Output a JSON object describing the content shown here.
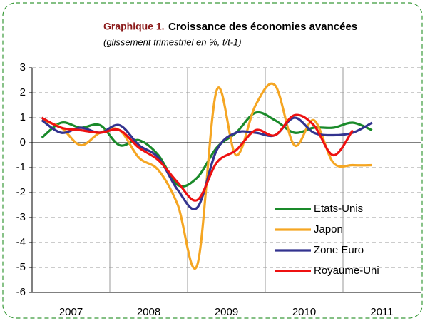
{
  "chart_data": {
    "type": "line",
    "title_prefix": "Graphique 1.",
    "title": "Croissance des économies avancées",
    "subtitle": "(glissement trimestriel en %, t/t-1)",
    "x": [
      2007.125,
      2007.375,
      2007.625,
      2007.875,
      2008.125,
      2008.375,
      2008.625,
      2008.875,
      2009.125,
      2009.375,
      2009.625,
      2009.875,
      2010.125,
      2010.375,
      2010.625,
      2010.875,
      2011.125,
      2011.375
    ],
    "series": [
      {
        "name": "Etats-Unis",
        "color": "#1a8a2a",
        "values": [
          0.2,
          0.8,
          0.6,
          0.7,
          -0.1,
          0.1,
          -0.5,
          -1.7,
          -1.4,
          -0.2,
          0.4,
          1.2,
          0.9,
          0.4,
          0.6,
          0.6,
          0.8,
          0.5
        ]
      },
      {
        "name": "Japon",
        "color": "#f5a623",
        "values": [
          0.9,
          0.6,
          -0.1,
          0.4,
          0.5,
          -0.6,
          -1.1,
          -2.5,
          -4.9,
          2.1,
          -0.5,
          1.5,
          2.3,
          -0.1,
          0.9,
          -0.8,
          -0.9,
          -0.9
        ]
      },
      {
        "name": "Zone Euro",
        "color": "#33338f",
        "values": [
          0.9,
          0.4,
          0.6,
          0.4,
          0.7,
          -0.1,
          -0.6,
          -1.9,
          -2.6,
          -0.3,
          0.4,
          0.4,
          0.3,
          1.0,
          0.4,
          0.3,
          0.4,
          0.8
        ]
      },
      {
        "name": "Royaume-Uni",
        "color": "#ee1111",
        "values": [
          1.0,
          0.6,
          0.5,
          0.4,
          0.5,
          -0.2,
          -0.7,
          -1.6,
          -2.3,
          -0.8,
          -0.3,
          0.5,
          0.3,
          1.1,
          0.7,
          -0.5,
          0.5,
          null
        ]
      }
    ],
    "xlim": [
      2007,
      2012
    ],
    "xticks": [
      {
        "value": 2007.5,
        "label": "2007"
      },
      {
        "value": 2008.5,
        "label": "2008"
      },
      {
        "value": 2009.5,
        "label": "2009"
      },
      {
        "value": 2010.5,
        "label": "2010"
      },
      {
        "value": 2011.5,
        "label": "2011"
      }
    ],
    "xgrid": [
      2008,
      2009,
      2010,
      2011
    ],
    "ylim": [
      -6,
      3
    ],
    "yticks": [
      -6,
      -5,
      -4,
      -3,
      -2,
      -1,
      0,
      1,
      2,
      3
    ],
    "grid": true
  }
}
